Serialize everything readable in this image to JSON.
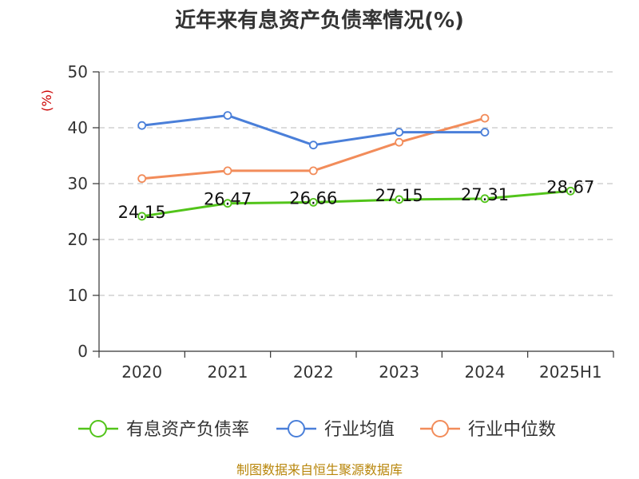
{
  "chart_data": {
    "type": "line",
    "title": "近年来有息资产负债率情况(%)",
    "ylabel": "(%)",
    "categories": [
      "2020",
      "2021",
      "2022",
      "2023",
      "2024",
      "2025H1"
    ],
    "ylim": [
      0,
      50
    ],
    "yticks": [
      0,
      10,
      20,
      30,
      40,
      50
    ],
    "grid": true,
    "legend_position": "bottom",
    "series": [
      {
        "name": "有息资产负债率",
        "color": "#52c41a",
        "values": [
          24.15,
          26.47,
          26.66,
          27.15,
          27.31,
          28.67
        ],
        "labels": [
          "24.15",
          "26.47",
          "26.66",
          "27.15",
          "27.31",
          "28.67"
        ]
      },
      {
        "name": "行业均值",
        "color": "#4a7fd9",
        "values": [
          40.4,
          42.2,
          36.9,
          39.2,
          39.2,
          null
        ]
      },
      {
        "name": "行业中位数",
        "color": "#f28c5a",
        "values": [
          30.9,
          32.3,
          32.3,
          37.4,
          41.7,
          null
        ]
      }
    ],
    "source": "制图数据来自恒生聚源数据库"
  }
}
